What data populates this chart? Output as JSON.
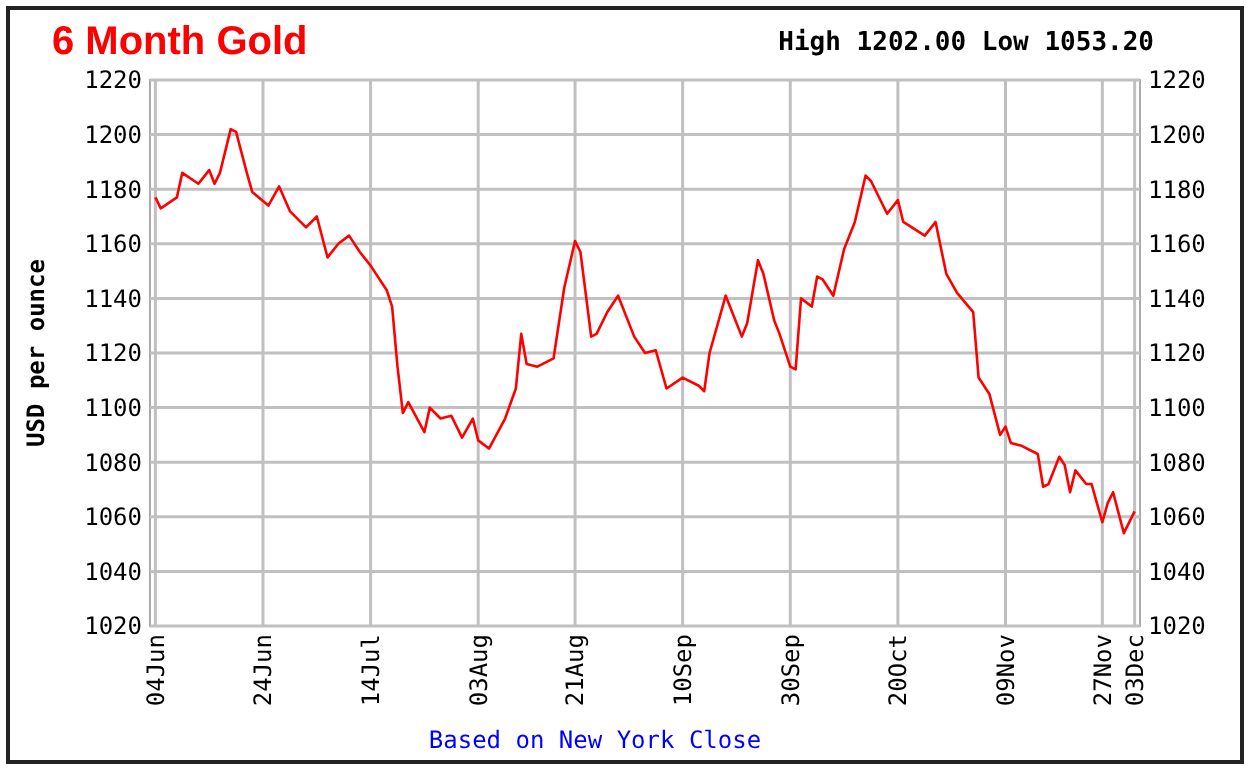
{
  "chart_data": {
    "type": "line",
    "title": "6 Month Gold",
    "subtitle": "High 1202.00 Low 1053.20",
    "ylabel": "USD per ounce",
    "annotations": [
      "Based on New York Close"
    ],
    "x": [
      "--06-04",
      "--06-05",
      "--06-08",
      "--06-09",
      "--06-12",
      "--06-14",
      "--06-15",
      "--06-16",
      "--06-18",
      "--06-19",
      "--06-21",
      "--06-22",
      "--06-25",
      "--06-27",
      "--06-29",
      "--07-02",
      "--07-04",
      "--07-06",
      "--07-08",
      "--07-10",
      "--07-12",
      "--07-14",
      "--07-17",
      "--07-18",
      "--07-19",
      "--07-20",
      "--07-21",
      "--07-24",
      "--07-25",
      "--07-27",
      "--07-29",
      "--07-31",
      "--08-02",
      "--08-03",
      "--08-05",
      "--08-08",
      "--08-10",
      "--08-11",
      "--08-12",
      "--08-14",
      "--08-17",
      "--08-19",
      "--08-21",
      "--08-22",
      "--08-24",
      "--08-25",
      "--08-27",
      "--08-29",
      "--09-01",
      "--09-03",
      "--09-05",
      "--09-07",
      "--09-10",
      "--09-13",
      "--09-14",
      "--09-15",
      "--09-18",
      "--09-21",
      "--09-22",
      "--09-24",
      "--09-25",
      "--09-27",
      "--09-28",
      "--09-30",
      "--10-01",
      "--10-02",
      "--10-04",
      "--10-05",
      "--10-06",
      "--10-08",
      "--10-10",
      "--10-12",
      "--10-14",
      "--10-15",
      "--10-18",
      "--10-20",
      "--10-21",
      "--10-25",
      "--10-27",
      "--10-29",
      "--10-31",
      "--11-03",
      "--11-04",
      "--11-06",
      "--11-08",
      "--11-09",
      "--11-10",
      "--11-12",
      "--11-15",
      "--11-16",
      "--11-17",
      "--11-19",
      "--11-20",
      "--11-21",
      "--11-22",
      "--11-24",
      "--11-25",
      "--11-27",
      "--11-28",
      "--11-29",
      "--12-01",
      "--12-03"
    ],
    "series": [
      {
        "color": "#ff0000",
        "values": [
          1177,
          1173,
          1177,
          1186,
          1182,
          1187,
          1182,
          1186,
          1202,
          1201,
          1186,
          1179,
          1174,
          1181,
          1172,
          1166,
          1170,
          1155,
          1160,
          1163,
          1157,
          1152,
          1143,
          1137,
          1115,
          1098,
          1102,
          1091,
          1100,
          1096,
          1097,
          1089,
          1096,
          1088,
          1085,
          1096,
          1107,
          1127,
          1116,
          1115,
          1118,
          1144,
          1161,
          1157,
          1126,
          1127,
          1135,
          1141,
          1126,
          1120,
          1121,
          1107,
          1111,
          1108,
          1106,
          1120,
          1141,
          1126,
          1131,
          1154,
          1149,
          1132,
          1127,
          1115,
          1114,
          1140,
          1137,
          1148,
          1147,
          1141,
          1158,
          1168,
          1185,
          1183,
          1171,
          1176,
          1168,
          1163,
          1168,
          1149,
          1142,
          1135,
          1111,
          1105,
          1090,
          1093,
          1087,
          1086,
          1083,
          1071,
          1072,
          1082,
          1079,
          1069,
          1077,
          1072,
          1072,
          1058,
          1065,
          1069,
          1054,
          1062
        ]
      }
    ],
    "xlim": [
      "--06-03",
      "--12-04"
    ],
    "xticks": [
      {
        "value": "--06-04",
        "label": "04Jun"
      },
      {
        "value": "--06-24",
        "label": "24Jun"
      },
      {
        "value": "--07-14",
        "label": "14Jul"
      },
      {
        "value": "--08-03",
        "label": "03Aug"
      },
      {
        "value": "--08-21",
        "label": "21Aug"
      },
      {
        "value": "--09-10",
        "label": "10Sep"
      },
      {
        "value": "--09-30",
        "label": "30Sep"
      },
      {
        "value": "--10-20",
        "label": "20Oct"
      },
      {
        "value": "--11-09",
        "label": "09Nov"
      },
      {
        "value": "--11-27",
        "label": "27Nov"
      },
      {
        "value": "--12-03",
        "label": "03Dec"
      }
    ],
    "ylim": [
      1020,
      1220
    ],
    "yticks": [
      1020,
      1040,
      1060,
      1080,
      1100,
      1120,
      1140,
      1160,
      1180,
      1200,
      1220
    ],
    "y2lim": [
      1020,
      1220
    ],
    "y2ticks": [
      1020,
      1040,
      1060,
      1080,
      1100,
      1120,
      1140,
      1160,
      1180,
      1200,
      1220
    ],
    "grid": true,
    "line_style": "solid"
  }
}
